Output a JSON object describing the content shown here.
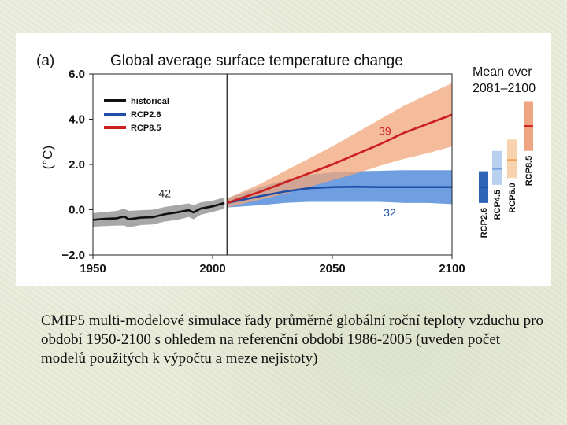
{
  "chart_data": {
    "type": "line",
    "panel_label": "(a)",
    "title": "Global average surface temperature change",
    "ylabel": "(°C)",
    "xlabel": "",
    "xlim": [
      1950,
      2100
    ],
    "ylim": [
      -2.0,
      6.0
    ],
    "x_ticks": [
      "1950",
      "2000",
      "2050",
      "2100"
    ],
    "y_ticks": [
      "6.0",
      "4.0",
      "2.0",
      "0.0",
      "−2.0"
    ],
    "divider_year": 2006,
    "legend_position": "top-left",
    "series": [
      {
        "name": "historical",
        "color": "#111111",
        "band_color": "#8a8a8a",
        "x": [
          1950,
          1955,
          1960,
          1963,
          1965,
          1970,
          1975,
          1980,
          1985,
          1990,
          1992,
          1995,
          2000,
          2005
        ],
        "values": [
          -0.45,
          -0.4,
          -0.38,
          -0.3,
          -0.42,
          -0.35,
          -0.33,
          -0.2,
          -0.12,
          -0.02,
          -0.12,
          0.05,
          0.15,
          0.3
        ],
        "lower": [
          -0.75,
          -0.72,
          -0.7,
          -0.7,
          -0.78,
          -0.68,
          -0.65,
          -0.52,
          -0.45,
          -0.32,
          -0.42,
          -0.22,
          -0.1,
          0.05
        ],
        "upper": [
          -0.15,
          -0.1,
          -0.05,
          0.05,
          -0.05,
          -0.02,
          0.0,
          0.12,
          0.2,
          0.28,
          0.2,
          0.32,
          0.4,
          0.55
        ],
        "model_count": "42"
      },
      {
        "name": "RCP2.6",
        "color": "#1f4ea8",
        "band_color": "#3f7fd6",
        "x": [
          2006,
          2020,
          2030,
          2040,
          2050,
          2060,
          2070,
          2080,
          2090,
          2100
        ],
        "values": [
          0.3,
          0.6,
          0.8,
          0.95,
          1.0,
          1.02,
          1.0,
          1.0,
          1.0,
          1.0
        ],
        "lower": [
          0.1,
          0.2,
          0.3,
          0.35,
          0.35,
          0.35,
          0.35,
          0.3,
          0.3,
          0.25
        ],
        "upper": [
          0.5,
          1.0,
          1.3,
          1.55,
          1.65,
          1.7,
          1.72,
          1.75,
          1.75,
          1.75
        ],
        "model_count": "32"
      },
      {
        "name": "RCP8.5",
        "color": "#cc1f1f",
        "band_color": "#f2a57a",
        "x": [
          2006,
          2020,
          2030,
          2040,
          2050,
          2060,
          2070,
          2080,
          2090,
          2100
        ],
        "values": [
          0.3,
          0.8,
          1.2,
          1.6,
          2.0,
          2.45,
          2.9,
          3.4,
          3.8,
          4.2
        ],
        "lower": [
          0.1,
          0.45,
          0.7,
          1.0,
          1.3,
          1.6,
          1.95,
          2.25,
          2.5,
          2.8
        ],
        "upper": [
          0.5,
          1.15,
          1.7,
          2.25,
          2.8,
          3.4,
          4.0,
          4.6,
          5.1,
          5.6
        ],
        "model_count": "39"
      }
    ],
    "mean_2081_2100": {
      "title_line1": "Mean over",
      "title_line2": "2081–2100",
      "bars": [
        {
          "name": "RCP2.6",
          "color": "#1f4ea8",
          "fill": "#2e63b8",
          "low": 0.3,
          "mid": 1.0,
          "high": 1.7
        },
        {
          "name": "RCP4.5",
          "color": "#7aa6dc",
          "fill": "#b9d1ef",
          "low": 1.1,
          "mid": 1.8,
          "high": 2.6
        },
        {
          "name": "RCP6.0",
          "color": "#f0a25a",
          "fill": "#f7d2ad",
          "low": 1.4,
          "mid": 2.2,
          "high": 3.1
        },
        {
          "name": "RCP8.5",
          "color": "#cc1f1f",
          "fill": "#f0a582",
          "low": 2.6,
          "mid": 3.7,
          "high": 4.8
        }
      ]
    }
  },
  "caption": "CMIP5 multi-modelové simulace řady průměrné globální roční teploty vzduchu pro období 1950-2100 s ohledem na referenční období 1986-2005 (uveden počet modelů použitých k výpočtu a meze nejistoty)"
}
